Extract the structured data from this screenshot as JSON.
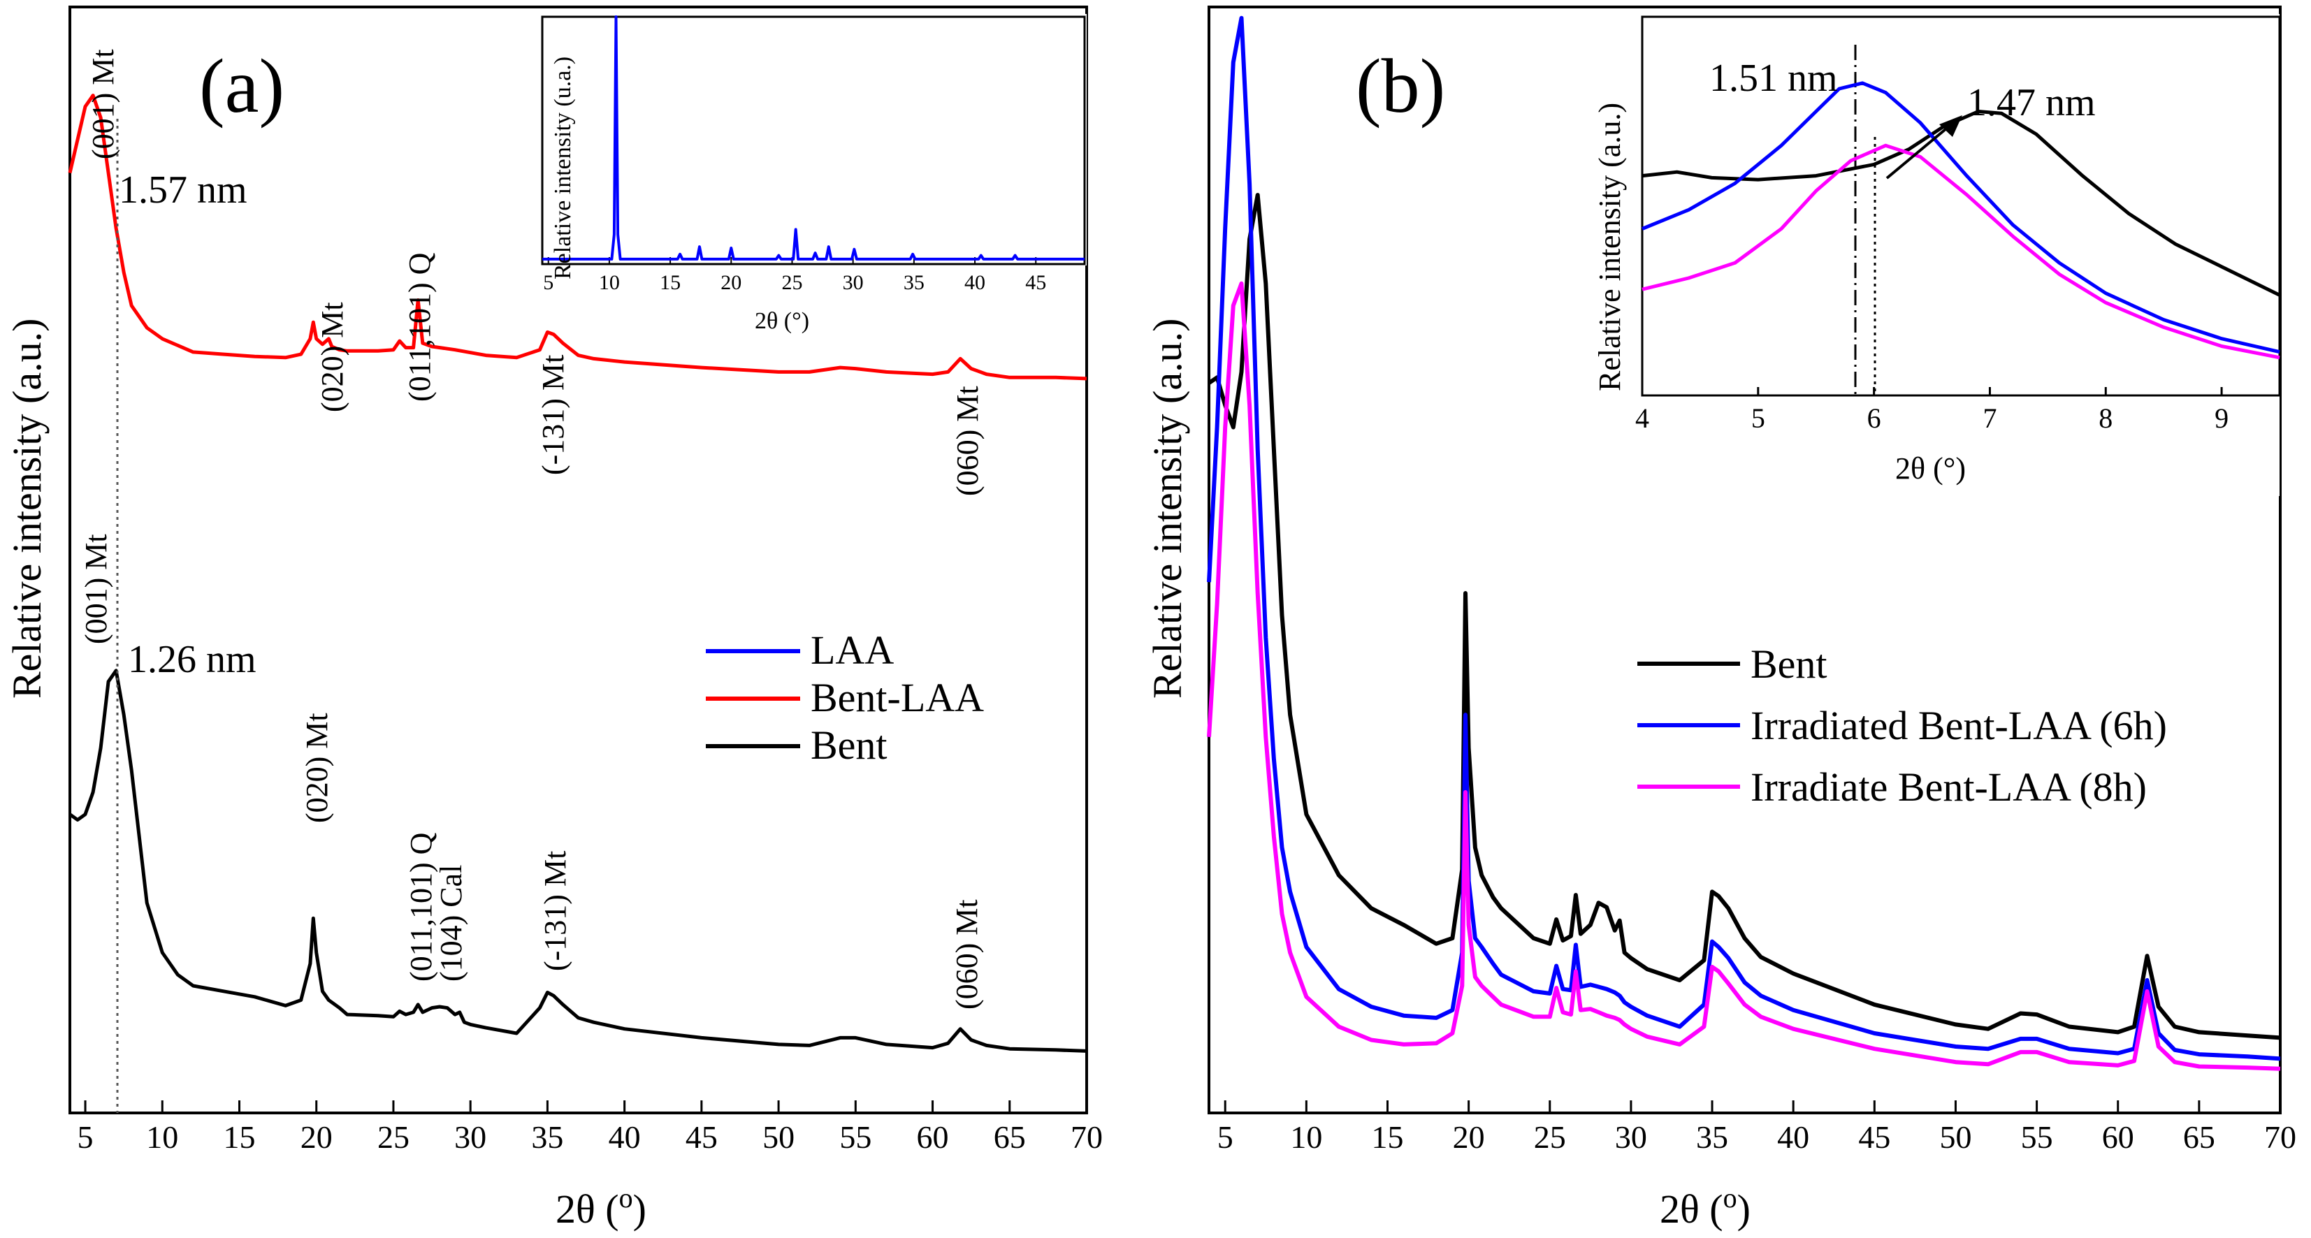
{
  "panels": {
    "a": {
      "tag": "(a)",
      "ylabel": "Relative intensity (a.u.)",
      "xlabel_main": "2θ (",
      "xlabel_sup": "o",
      "xlabel_close": ")",
      "xticks": [
        "5",
        "10",
        "15",
        "20",
        "25",
        "30",
        "35",
        "40",
        "45",
        "50",
        "55",
        "60",
        "65",
        "70"
      ],
      "d_spacing": [
        "1.57 nm",
        "1.26 nm"
      ],
      "peak_labels_top": [
        "(001) Mt",
        "(020) Mt",
        "(011,101) Q",
        "(-131) Mt",
        "(060) Mt"
      ],
      "peak_labels_bottom": [
        "(001) Mt",
        "(020) Mt",
        "(011,101) Q",
        "(104) Cal",
        "(-131) Mt",
        "(060) Mt"
      ],
      "legend": [
        "LAA",
        "Bent-LAA",
        "Bent"
      ],
      "inset": {
        "ylabel": "Relative intensity (u.a.)",
        "xlabel": "2θ (°)",
        "xticks": [
          "5",
          "10",
          "15",
          "20",
          "25",
          "30",
          "35",
          "40",
          "45"
        ]
      }
    },
    "b": {
      "tag": "(b)",
      "ylabel": "Relative intensity (a.u.)",
      "xlabel_main": "2θ (",
      "xlabel_sup": "o",
      "xlabel_close": ")",
      "xticks": [
        "5",
        "10",
        "15",
        "20",
        "25",
        "30",
        "35",
        "40",
        "45",
        "50",
        "55",
        "60",
        "65",
        "70"
      ],
      "legend": [
        "Bent",
        "Irradiated Bent-LAA (6h)",
        "Irradiate Bent-LAA (8h)"
      ],
      "inset": {
        "ylabel": "Relative intensity (a.u.)",
        "xlabel": "2θ (°)",
        "xticks": [
          "4",
          "5",
          "6",
          "7",
          "8",
          "9"
        ],
        "d_spacing": [
          "1.51 nm",
          "1.47 nm"
        ]
      }
    }
  },
  "chart_data": [
    {
      "id": "panel-a",
      "type": "line",
      "title": "(a)",
      "xlabel": "2θ (°)",
      "ylabel": "Relative intensity (a.u.)",
      "xlim": [
        4,
        70
      ],
      "ylim": [
        0,
        100
      ],
      "grid": false,
      "legend_position": "right-middle",
      "series": [
        {
          "name": "Bent-LAA",
          "color": "#ff0000",
          "x": [
            4,
            4.5,
            5,
            5.5,
            6,
            6.5,
            7,
            7.5,
            8,
            9,
            10,
            12,
            14,
            16,
            18,
            19,
            19.6,
            19.8,
            20,
            20.4,
            20.8,
            21,
            21.5,
            22,
            24,
            25,
            25.4,
            25.8,
            26.3,
            26.6,
            26.9,
            27.5,
            29,
            31,
            33,
            34.5,
            35,
            35.4,
            36,
            37,
            38,
            40,
            45,
            50,
            52,
            54,
            55,
            57,
            60,
            61,
            61.8,
            62.5,
            63.5,
            65,
            68,
            70
          ],
          "y": [
            85,
            88,
            91,
            92,
            90,
            85,
            80,
            76,
            73,
            71,
            70,
            68.8,
            68.6,
            68.4,
            68.3,
            68.6,
            70,
            71.5,
            70,
            69.5,
            70,
            69.3,
            69,
            68.9,
            68.9,
            69,
            69.8,
            69.2,
            69.2,
            73.5,
            69.6,
            69.3,
            69,
            68.5,
            68.3,
            69,
            70.6,
            70.4,
            69.6,
            68.5,
            68.2,
            67.9,
            67.4,
            67,
            67,
            67.4,
            67.3,
            67,
            66.8,
            67,
            68.2,
            67.3,
            66.8,
            66.5,
            66.5,
            66.4
          ]
        },
        {
          "name": "Bent",
          "color": "#000000",
          "x": [
            4,
            4.5,
            5,
            5.5,
            6,
            6.5,
            7,
            7.5,
            8,
            8.5,
            9,
            10,
            11,
            12,
            14,
            16,
            18,
            19,
            19.6,
            19.8,
            20,
            20.4,
            20.8,
            21.5,
            22,
            24,
            25,
            25.4,
            25.8,
            26.3,
            26.6,
            26.9,
            27.5,
            28,
            28.5,
            29,
            29.3,
            29.6,
            30,
            31,
            33,
            34.5,
            35,
            35.4,
            36,
            37,
            38,
            40,
            45,
            50,
            52,
            54,
            55,
            57,
            60,
            61,
            61.8,
            62.5,
            63.5,
            65,
            68,
            70
          ],
          "y": [
            27,
            26.5,
            27,
            29,
            33,
            39,
            40,
            36,
            31,
            25,
            19,
            14.5,
            12.5,
            11.5,
            11,
            10.5,
            9.7,
            10.2,
            13.5,
            17.6,
            14.5,
            11,
            10.2,
            9.5,
            8.9,
            8.8,
            8.7,
            9.2,
            8.9,
            9.1,
            9.8,
            9.1,
            9.5,
            9.6,
            9.5,
            8.9,
            9.1,
            8.2,
            8,
            7.7,
            7.2,
            9.5,
            10.9,
            10.6,
            9.8,
            8.6,
            8.2,
            7.6,
            6.8,
            6.2,
            6.1,
            6.8,
            6.8,
            6.2,
            5.9,
            6.3,
            7.6,
            6.6,
            6.1,
            5.8,
            5.7,
            5.6
          ]
        }
      ]
    },
    {
      "id": "panel-a-inset",
      "type": "line",
      "title": "",
      "xlabel": "2θ (°)",
      "ylabel": "Relative intensity (u.a.)",
      "xlim": [
        4.5,
        49
      ],
      "ylim": [
        0,
        100
      ],
      "series": [
        {
          "name": "LAA",
          "color": "#0000ff",
          "x": [
            4.5,
            10.2,
            10.4,
            10.55,
            10.7,
            10.9,
            15.6,
            15.8,
            16,
            17.2,
            17.4,
            17.6,
            19.8,
            20,
            20.2,
            23.7,
            23.9,
            24.1,
            25.1,
            25.3,
            25.5,
            26.7,
            26.9,
            27.1,
            27.8,
            28,
            28.2,
            29.9,
            30.1,
            30.3,
            34.7,
            34.9,
            35.1,
            40.3,
            40.5,
            40.7,
            43.1,
            43.3,
            43.5,
            49
          ],
          "y": [
            2,
            2,
            12,
            100,
            12,
            2,
            2,
            4,
            2,
            2,
            7,
            2,
            2,
            6.5,
            2,
            2,
            3.5,
            2,
            2,
            14,
            2,
            2,
            4.5,
            2,
            2,
            7,
            2,
            2,
            6,
            2,
            2,
            4,
            2,
            2,
            3.5,
            2,
            2,
            3.5,
            2,
            2
          ]
        }
      ]
    },
    {
      "id": "panel-b",
      "type": "line",
      "title": "(b)",
      "xlabel": "2θ (°)",
      "ylabel": "Relative intensity (a.u.)",
      "xlim": [
        4,
        70
      ],
      "ylim": [
        0,
        100
      ],
      "grid": false,
      "legend_position": "right-middle",
      "series": [
        {
          "name": "Bent",
          "color": "#000000",
          "x": [
            4,
            4.5,
            5,
            5.5,
            6,
            6.5,
            7,
            7.5,
            8,
            8.5,
            9,
            10,
            12,
            14,
            16,
            18,
            19,
            19.6,
            19.8,
            20,
            20.4,
            20.8,
            21.5,
            22,
            24,
            25,
            25.4,
            25.8,
            26.3,
            26.6,
            26.9,
            27.5,
            28,
            28.5,
            29,
            29.3,
            29.6,
            30,
            31,
            33,
            34.5,
            35,
            35.4,
            36,
            37,
            38,
            40,
            45,
            50,
            52,
            54,
            55,
            57,
            60,
            61,
            61.8,
            62.5,
            63.5,
            65,
            68,
            70
          ],
          "y": [
            66,
            66.5,
            64,
            62,
            67,
            79,
            83,
            75,
            60,
            45,
            36,
            27,
            21.5,
            18.5,
            17,
            15.3,
            15.8,
            22,
            47,
            33,
            24,
            21.5,
            19.5,
            18.5,
            15.8,
            15.3,
            17.5,
            15.6,
            16,
            19.7,
            16.2,
            17,
            19,
            18.6,
            16.5,
            17.4,
            14.5,
            14,
            13,
            12,
            13.8,
            20,
            19.6,
            18.5,
            15.8,
            14.1,
            12.6,
            9.8,
            8,
            7.6,
            9,
            8.9,
            7.8,
            7.3,
            7.8,
            14.2,
            9.6,
            7.8,
            7.3,
            7,
            6.8
          ]
        },
        {
          "name": "Irradiated Bent-LAA (6h)",
          "color": "#0000ff",
          "x": [
            4,
            4.5,
            5,
            5.5,
            6,
            6.5,
            7,
            7.5,
            8,
            8.5,
            9,
            10,
            12,
            14,
            16,
            18,
            19,
            19.6,
            19.8,
            20,
            20.4,
            20.8,
            21.5,
            22,
            24,
            25,
            25.4,
            25.8,
            26.3,
            26.6,
            26.9,
            27.5,
            28,
            28.5,
            29,
            29.3,
            29.6,
            30,
            31,
            33,
            34.5,
            35,
            35.4,
            36,
            37,
            38,
            40,
            45,
            50,
            52,
            54,
            55,
            57,
            60,
            61,
            61.8,
            62.5,
            63.5,
            65,
            68,
            70
          ],
          "y": [
            48,
            62,
            80,
            95,
            99,
            84,
            60,
            43,
            32,
            24,
            20,
            15,
            11.2,
            9.6,
            8.8,
            8.6,
            9.3,
            14.5,
            36,
            21,
            15.8,
            15,
            13.5,
            12.5,
            11,
            10.8,
            13.3,
            11.2,
            11.1,
            15.2,
            11.4,
            11.6,
            11.4,
            11.2,
            10.9,
            10.6,
            10,
            9.6,
            8.8,
            7.8,
            9.8,
            15.5,
            15,
            14,
            11.8,
            10.6,
            9.3,
            7.2,
            6,
            5.8,
            6.7,
            6.7,
            5.8,
            5.4,
            5.8,
            12,
            7.2,
            5.7,
            5.3,
            5.1,
            4.9
          ]
        },
        {
          "name": "Irradiate Bent-LAA (8h)",
          "color": "#ff00ff",
          "x": [
            4,
            4.5,
            5,
            5.5,
            6,
            6.5,
            7,
            7.5,
            8,
            8.5,
            9,
            10,
            12,
            14,
            16,
            18,
            19,
            19.6,
            19.8,
            20,
            20.4,
            20.8,
            21.5,
            22,
            24,
            25,
            25.4,
            25.8,
            26.3,
            26.6,
            26.9,
            27.5,
            28,
            28.5,
            29,
            29.3,
            29.6,
            30,
            31,
            33,
            34.5,
            35,
            35.4,
            36,
            37,
            38,
            40,
            45,
            50,
            52,
            54,
            55,
            57,
            60,
            61,
            61.8,
            62.5,
            63.5,
            65,
            68,
            70
          ],
          "y": [
            34,
            46,
            62,
            73,
            75,
            64,
            47,
            34,
            25,
            18,
            14.5,
            10.5,
            7.8,
            6.6,
            6.2,
            6.3,
            7.2,
            11.5,
            29,
            17,
            12.3,
            11.5,
            10.5,
            9.8,
            8.7,
            8.7,
            11.3,
            9.1,
            8.9,
            12.8,
            9.3,
            9.4,
            9.1,
            8.8,
            8.6,
            8.4,
            8,
            7.6,
            6.9,
            6.2,
            7.8,
            13.2,
            12.8,
            11.7,
            9.8,
            8.7,
            7.6,
            5.8,
            4.6,
            4.4,
            5.5,
            5.5,
            4.6,
            4.3,
            4.7,
            11,
            6,
            4.6,
            4.2,
            4.1,
            4
          ]
        }
      ]
    },
    {
      "id": "panel-b-inset",
      "type": "line",
      "title": "",
      "xlabel": "2θ (°)",
      "ylabel": "Relative intensity (a.u.)",
      "xlim": [
        4,
        9.5
      ],
      "ylim": [
        0,
        100
      ],
      "series": [
        {
          "name": "Bent",
          "color": "#000000",
          "x": [
            4,
            4.3,
            4.6,
            5,
            5.5,
            6,
            6.3,
            6.6,
            6.9,
            7.1,
            7.4,
            7.8,
            8.2,
            8.6,
            9,
            9.5
          ],
          "y": [
            58,
            59,
            57.5,
            57,
            58,
            61,
            65,
            71,
            75,
            74.5,
            69,
            58,
            48,
            40,
            34,
            26.5
          ]
        },
        {
          "name": "Irradiated Bent-LAA (6h)",
          "color": "#0000ff",
          "x": [
            4,
            4.4,
            4.8,
            5.2,
            5.5,
            5.7,
            5.9,
            6.1,
            6.4,
            6.8,
            7.2,
            7.6,
            8,
            8.5,
            9,
            9.5
          ],
          "y": [
            44,
            49,
            56,
            66,
            75,
            81,
            82.5,
            80,
            72,
            58,
            45,
            35,
            27,
            20,
            15,
            11.5
          ]
        },
        {
          "name": "Irradiate Bent-LAA (8h)",
          "color": "#ff00ff",
          "x": [
            4,
            4.4,
            4.8,
            5.2,
            5.5,
            5.8,
            6.1,
            6.4,
            6.8,
            7.2,
            7.6,
            8,
            8.5,
            9,
            9.5
          ],
          "y": [
            28,
            31,
            35,
            44,
            54,
            62,
            66,
            63,
            53,
            42,
            32,
            24.5,
            18,
            13,
            10
          ]
        }
      ]
    }
  ]
}
